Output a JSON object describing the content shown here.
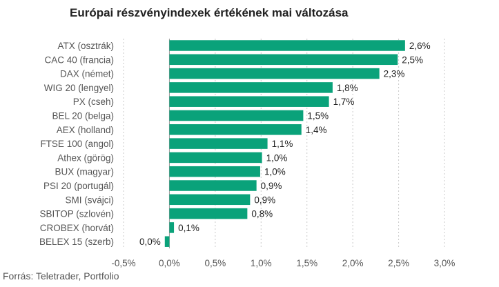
{
  "chart_data": {
    "type": "bar",
    "orientation": "horizontal",
    "title": "Európai részvényindexek értékének mai változása",
    "source": "Forrás: Teletrader, Portfolio",
    "categories": [
      "ATX (osztrák)",
      "CAC 40 (francia)",
      "DAX (német)",
      "WIG 20 (lengyel)",
      "PX (cseh)",
      "BEL 20 (belga)",
      "AEX (holland)",
      "FTSE 100 (angol)",
      "Athex (görög)",
      "BUX (magyar)",
      "PSI 20 (portugál)",
      "SMI (svájci)",
      "SBITOP (szlovén)",
      "CROBEX (horvát)",
      "BELEX 15 (szerb)"
    ],
    "values": [
      2.57,
      2.49,
      2.29,
      1.78,
      1.74,
      1.46,
      1.44,
      1.07,
      1.01,
      0.99,
      0.95,
      0.88,
      0.85,
      0.05,
      -0.05
    ],
    "value_labels": [
      "2,6%",
      "2,5%",
      "2,3%",
      "1,8%",
      "1,7%",
      "1,5%",
      "1,4%",
      "1,1%",
      "1,0%",
      "1,0%",
      "0,9%",
      "0,9%",
      "0,8%",
      "0,1%",
      "0,0%"
    ],
    "xlim": [
      -0.5,
      3.0
    ],
    "xticks": [
      -0.5,
      0,
      0.5,
      1.0,
      1.5,
      2.0,
      2.5,
      3.0
    ],
    "xtick_labels": [
      "-0,5%",
      "0,0%",
      "0,5%",
      "1,0%",
      "1,5%",
      "2,0%",
      "2,5%",
      "3,0%"
    ],
    "grid": "vertical dashed",
    "bar_color": "#0aa27a",
    "grid_color": "#c8c8c8",
    "axis_color": "#999999"
  }
}
